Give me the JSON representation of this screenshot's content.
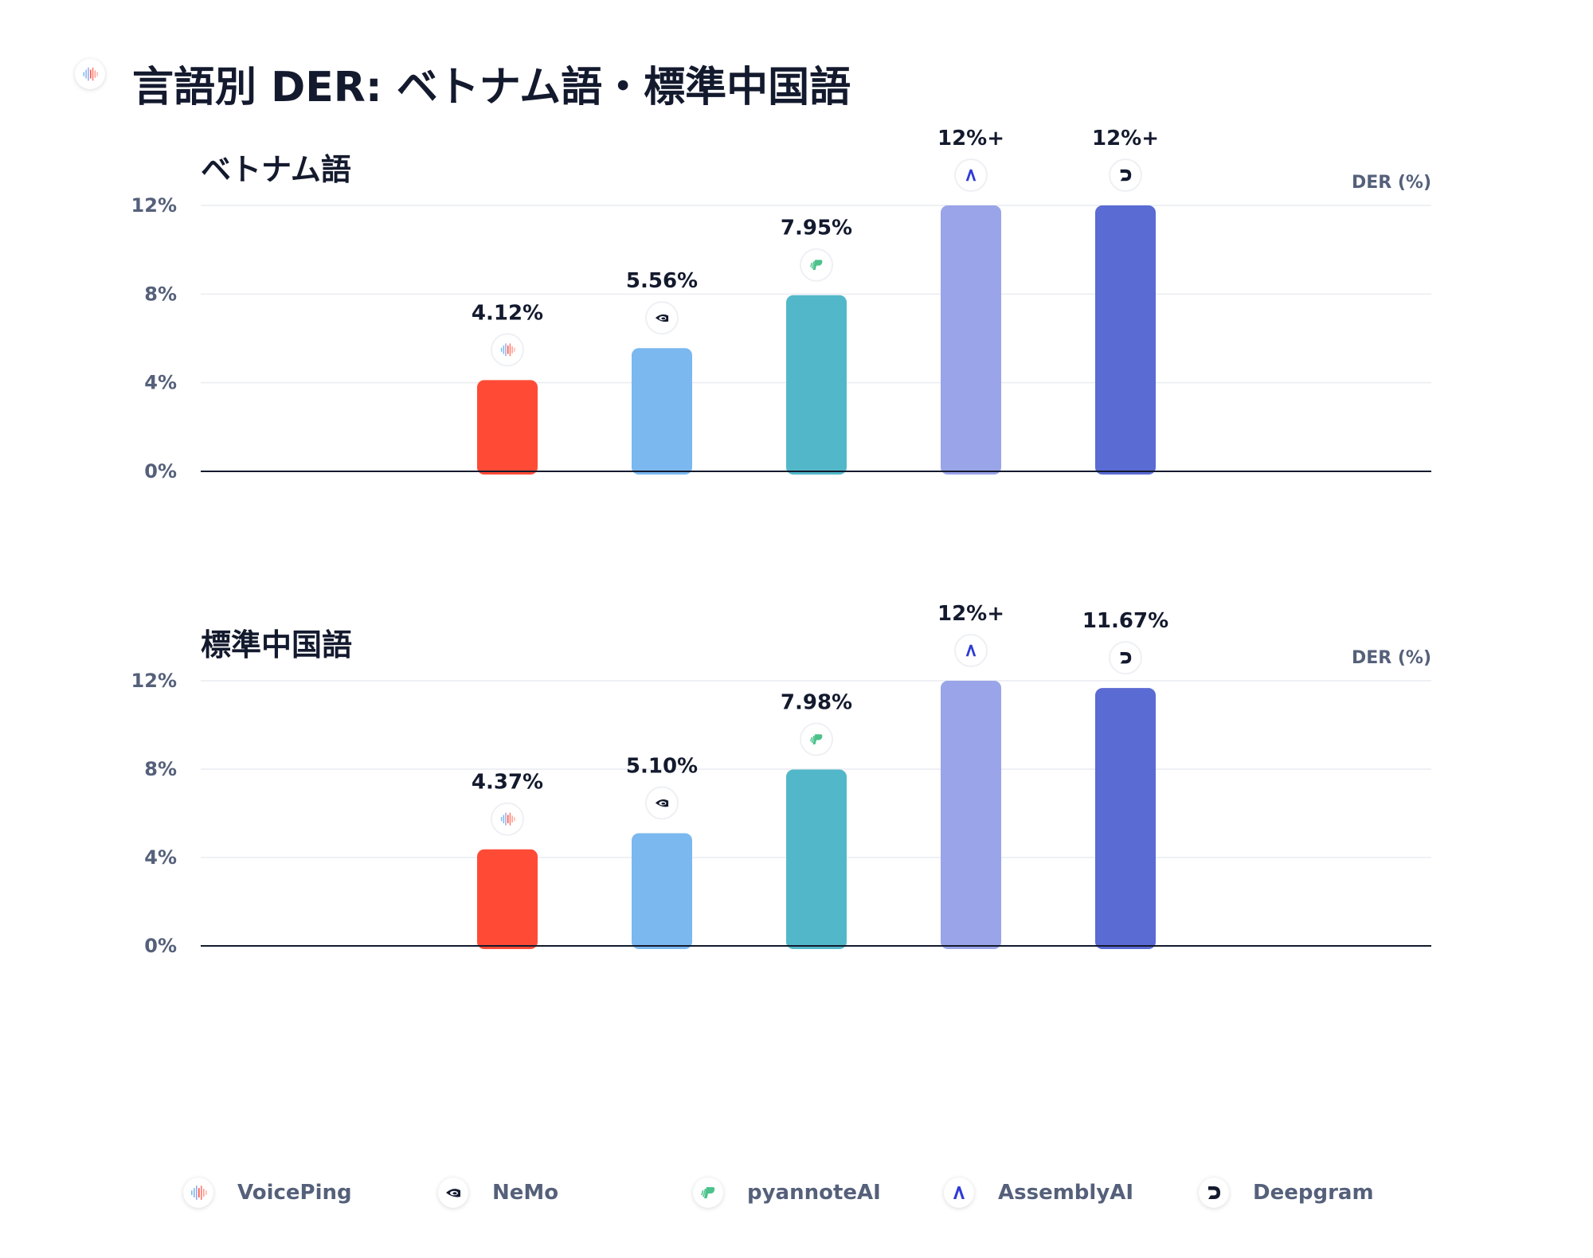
{
  "title": "言語別 DER: ベトナム語・標準中国語",
  "unit_label": "DER (%)",
  "providers": [
    {
      "name": "VoicePing",
      "color": "#ff4b36",
      "icon": "voiceping-icon"
    },
    {
      "name": "NeMo",
      "color": "#7ab8ef",
      "icon": "nvidia-icon"
    },
    {
      "name": "pyannoteAI",
      "color": "#52b8c9",
      "icon": "pyannote-icon"
    },
    {
      "name": "AssemblyAI",
      "color": "#9aa4e8",
      "icon": "assemblyai-icon"
    },
    {
      "name": "Deepgram",
      "color": "#5a6bd4",
      "icon": "deepgram-icon"
    }
  ],
  "chart_data": [
    {
      "type": "bar",
      "title": "ベトナム語",
      "ylabel": "DER (%)",
      "categories": [
        "VoicePing",
        "NeMo",
        "pyannoteAI",
        "AssemblyAI",
        "Deepgram"
      ],
      "values": [
        4.12,
        5.56,
        7.95,
        12,
        12
      ],
      "value_labels": [
        "4.12%",
        "5.56%",
        "7.95%",
        "12%+",
        "12%+"
      ],
      "ylim": [
        0,
        12
      ],
      "yticks": [
        "0%",
        "4%",
        "8%",
        "12%"
      ],
      "grid": true
    },
    {
      "type": "bar",
      "title": "標準中国語",
      "ylabel": "DER (%)",
      "categories": [
        "VoicePing",
        "NeMo",
        "pyannoteAI",
        "AssemblyAI",
        "Deepgram"
      ],
      "values": [
        4.37,
        5.1,
        7.98,
        12,
        11.67
      ],
      "value_labels": [
        "4.37%",
        "5.10%",
        "7.98%",
        "12%+",
        "11.67%"
      ],
      "ylim": [
        0,
        12
      ],
      "yticks": [
        "0%",
        "4%",
        "8%",
        "12%"
      ],
      "grid": true
    }
  ],
  "legend": {
    "placement": "bottom"
  }
}
